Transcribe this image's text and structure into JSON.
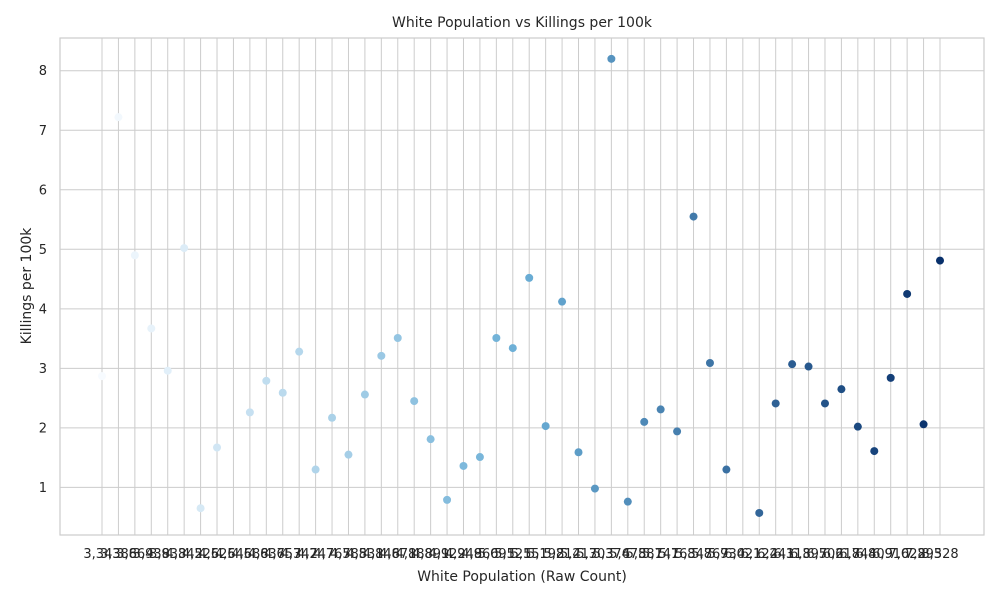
{
  "chart_data": {
    "type": "scatter",
    "title": "White Population vs Killings per 100k",
    "xlabel": "White Population (Raw Count)",
    "ylabel": "Killings per 100k",
    "x_scale": "categorical",
    "ylim": [
      0.2,
      8.55
    ],
    "yticks": [
      1,
      2,
      3,
      4,
      5,
      6,
      7,
      8
    ],
    "grid": true,
    "color_map": {
      "start": "#f7fbff",
      "end": "#08306b",
      "encodes": "white population rank"
    },
    "categories": [
      "3,343",
      "3,386",
      "3,864",
      "3,938",
      "3,938",
      "4,342",
      "4,526",
      "4,526",
      "4,546",
      "4,588",
      "4,637",
      "4,653",
      "4,742",
      "4,747",
      "4,765",
      "4,785",
      "4,831",
      "4,846",
      "4,871",
      "4,888",
      "4,891",
      "4,922",
      "4,948",
      "4,966",
      "5,095",
      "5,125",
      "5,151",
      "5,198",
      "5,214",
      "5,217",
      "5,303",
      "5,376",
      "5,478",
      "5,581",
      "5,741",
      "5,763",
      "5,847",
      "5,867",
      "5,934",
      "6,021",
      "6,124",
      "6,241",
      "6,318",
      "6,397",
      "6,502",
      "6,618",
      "6,744",
      "6,809",
      "6,916",
      "7,028",
      "7,295",
      "8,328"
    ],
    "values": [
      2.87,
      7.22,
      4.9,
      3.67,
      2.96,
      5.02,
      0.65,
      1.67,
      null,
      2.26,
      2.79,
      2.59,
      3.28,
      1.3,
      2.17,
      1.55,
      2.56,
      3.21,
      3.51,
      2.45,
      1.81,
      0.79,
      1.36,
      1.51,
      3.51,
      3.34,
      4.52,
      2.03,
      4.12,
      1.59,
      0.98,
      8.2,
      0.76,
      2.1,
      2.31,
      1.94,
      5.55,
      3.09,
      1.3,
      null,
      0.57,
      2.41,
      3.07,
      3.03,
      2.41,
      2.65,
      2.02,
      1.61,
      2.84,
      4.25,
      2.06,
      4.81
    ]
  }
}
